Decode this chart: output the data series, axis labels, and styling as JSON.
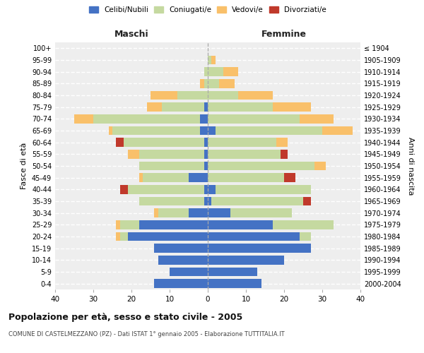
{
  "age_groups": [
    "0-4",
    "5-9",
    "10-14",
    "15-19",
    "20-24",
    "25-29",
    "30-34",
    "35-39",
    "40-44",
    "45-49",
    "50-54",
    "55-59",
    "60-64",
    "65-69",
    "70-74",
    "75-79",
    "80-84",
    "85-89",
    "90-94",
    "95-99",
    "100+"
  ],
  "birth_years": [
    "2000-2004",
    "1995-1999",
    "1990-1994",
    "1985-1989",
    "1980-1984",
    "1975-1979",
    "1970-1974",
    "1965-1969",
    "1960-1964",
    "1955-1959",
    "1950-1954",
    "1945-1949",
    "1940-1944",
    "1935-1939",
    "1930-1934",
    "1925-1929",
    "1920-1924",
    "1915-1919",
    "1910-1914",
    "1905-1909",
    "≤ 1904"
  ],
  "colors": {
    "celibi": "#4472C4",
    "coniugati": "#C5D9A0",
    "vedovi": "#F9C06A",
    "divorziati": "#C0392B"
  },
  "male": {
    "celibi": [
      14,
      10,
      13,
      14,
      21,
      18,
      5,
      1,
      1,
      5,
      1,
      1,
      1,
      2,
      2,
      1,
      0,
      0,
      0,
      0,
      0
    ],
    "coniugati": [
      0,
      0,
      0,
      0,
      2,
      5,
      8,
      17,
      20,
      12,
      17,
      17,
      21,
      23,
      28,
      11,
      8,
      1,
      1,
      0,
      0
    ],
    "vedovi": [
      0,
      0,
      0,
      0,
      1,
      1,
      1,
      0,
      0,
      1,
      0,
      3,
      0,
      1,
      5,
      4,
      7,
      1,
      0,
      0,
      0
    ],
    "divorziati": [
      0,
      0,
      0,
      0,
      0,
      0,
      0,
      0,
      2,
      0,
      0,
      0,
      2,
      0,
      0,
      0,
      0,
      0,
      0,
      0,
      0
    ]
  },
  "female": {
    "celibi": [
      14,
      13,
      20,
      27,
      24,
      17,
      6,
      1,
      2,
      0,
      0,
      0,
      0,
      2,
      0,
      0,
      0,
      0,
      0,
      0,
      0
    ],
    "coniugati": [
      0,
      0,
      0,
      0,
      3,
      16,
      16,
      24,
      25,
      20,
      28,
      19,
      18,
      28,
      24,
      17,
      8,
      3,
      4,
      1,
      0
    ],
    "vedovi": [
      0,
      0,
      0,
      0,
      0,
      0,
      0,
      0,
      0,
      0,
      3,
      1,
      3,
      8,
      9,
      10,
      9,
      4,
      4,
      1,
      0
    ],
    "divorziati": [
      0,
      0,
      0,
      0,
      0,
      0,
      0,
      2,
      0,
      3,
      0,
      2,
      0,
      0,
      0,
      0,
      0,
      0,
      0,
      0,
      0
    ]
  },
  "xlim": 40,
  "title": "Popolazione per età, sesso e stato civile - 2005",
  "subtitle": "COMUNE DI CASTELMEZZANO (PZ) - Dati ISTAT 1° gennaio 2005 - Elaborazione TUTTITALIA.IT",
  "ylabel_left": "Fasce di età",
  "ylabel_right": "Anni di nascita",
  "xlabel_left": "Maschi",
  "xlabel_right": "Femmine",
  "legend_labels": [
    "Celibi/Nubili",
    "Coniugati/e",
    "Vedovi/e",
    "Divorziati/e"
  ],
  "background_color": "#eeeeee",
  "bar_height": 0.75
}
